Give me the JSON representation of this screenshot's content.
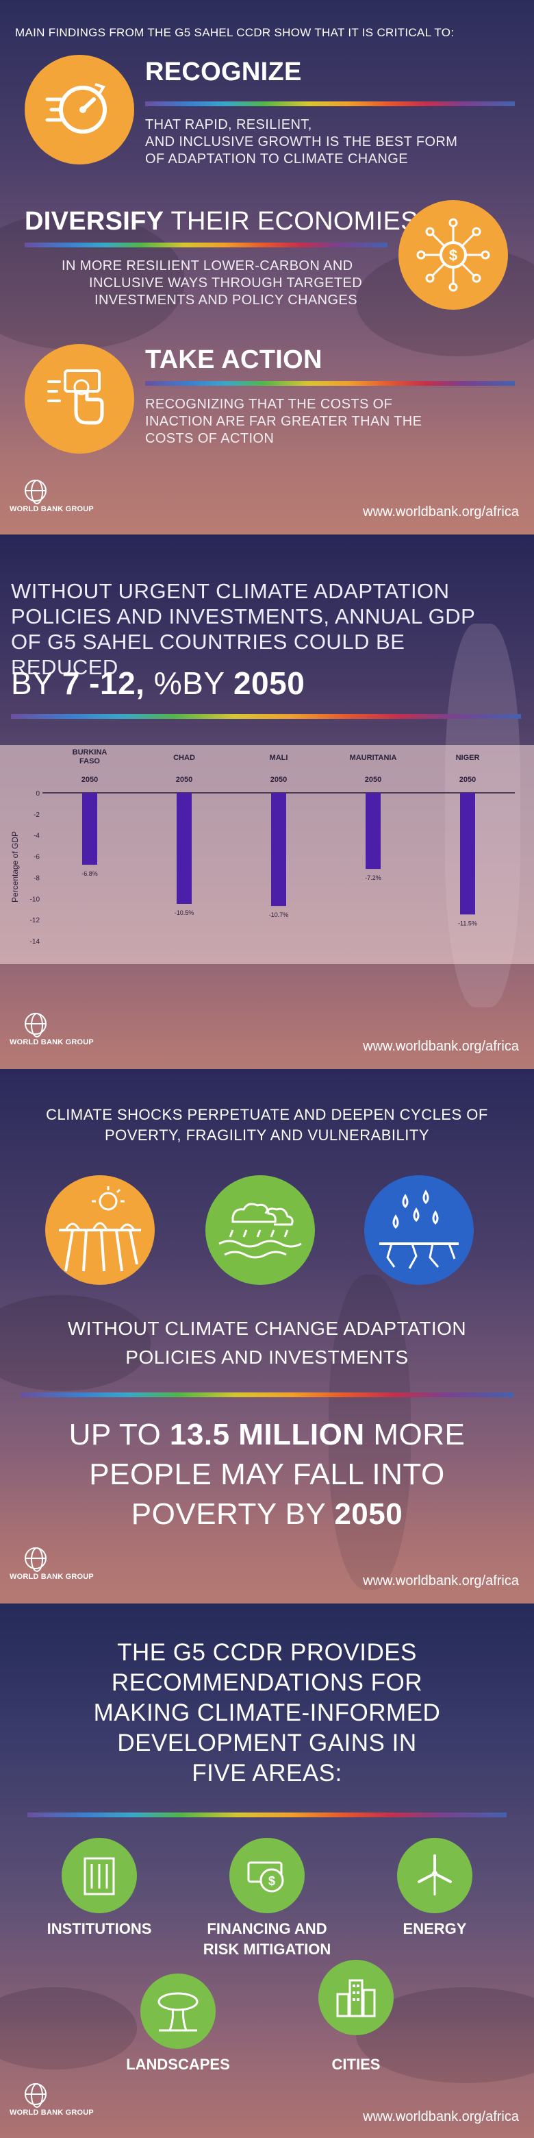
{
  "panel1": {
    "intro": "MAIN FINDINGS FROM THE G5 SAHEL CCDR SHOW THAT IT IS CRITICAL TO:",
    "recognize": {
      "title": "RECOGNIZE",
      "line1": "THAT RAPID, RESILIENT,",
      "line2": "AND INCLUSIVE GROWTH IS THE BEST FORM",
      "line3": "OF ADAPTATION TO CLIMATE CHANGE",
      "icon": "speedometer-icon"
    },
    "diversify": {
      "title_bold": "DIVERSIFY",
      "title_rest": " THEIR ECONOMIES",
      "line1": "IN MORE RESILIENT LOWER-CARBON AND",
      "line2": "INCLUSIVE WAYS THROUGH TARGETED",
      "line3": "INVESTMENTS AND POLICY CHANGES",
      "icon": "dollar-network-icon"
    },
    "take_action": {
      "title": "TAKE ACTION",
      "line1": "RECOGNIZING THAT THE COSTS OF",
      "line2": "INACTION ARE FAR GREATER THAN THE",
      "line3": "COSTS OF ACTION",
      "icon": "hand-tap-icon"
    }
  },
  "footer": {
    "logo_text": "WORLD BANK GROUP",
    "url": "www.worldbank.org/africa"
  },
  "panel2": {
    "head1": "WITHOUT URGENT CLIMATE ADAPTATION",
    "head2": "POLICIES AND INVESTMENTS, ANNUAL GDP",
    "head3": "OF G5 SAHEL COUNTRIES COULD BE REDUCED",
    "big_by": "BY ",
    "big_range": "7 -12, ",
    "big_pct": "%BY ",
    "big_year": "2050"
  },
  "chart_data": {
    "type": "bar",
    "categories": [
      "BURKINA FASO",
      "CHAD",
      "MALI",
      "MAURITANIA",
      "NIGER"
    ],
    "year_label": "2050",
    "values": [
      -6.8,
      -10.5,
      -10.7,
      -7.2,
      -11.5
    ],
    "value_labels": [
      "-6.8%",
      "-10.5%",
      "-10.7%",
      "-7.2%",
      "-11.5%"
    ],
    "ylabel": "Percentage of GDP",
    "ylim": [
      -14,
      0
    ],
    "yticks": [
      0,
      -2,
      -4,
      -6,
      -8,
      -10,
      -12,
      -14
    ],
    "bar_color": "#4b1fa8"
  },
  "panel3": {
    "head1": "CLIMATE SHOCKS PERPETUATE AND DEEPEN CYCLES OF",
    "head2": "POVERTY, FRAGILITY AND VULNERABILITY",
    "icons": [
      {
        "name": "drought-icon",
        "color": "#f4a53a"
      },
      {
        "name": "flood-icon",
        "color": "#79bd45"
      },
      {
        "name": "rain-cracked-soil-icon",
        "color": "#2a64c8"
      }
    ],
    "mid1": "WITHOUT CLIMATE CHANGE ADAPTATION",
    "mid2": "POLICIES AND INVESTMENTS",
    "big_pre": "UP TO ",
    "big_num": "13.5 MILLION",
    "big_post": " MORE",
    "big_line2": "PEOPLE MAY FALL INTO",
    "big_line3_pre": "POVERTY BY ",
    "big_year": "2050"
  },
  "panel4": {
    "head1": "THE G5 CCDR PROVIDES",
    "head2": "RECOMMENDATIONS FOR",
    "head3": "MAKING CLIMATE-INFORMED",
    "head4": "DEVELOPMENT GAINS IN",
    "head5": "FIVE AREAS:",
    "areas": [
      {
        "label": "INSTITUTIONS",
        "icon": "building-icon"
      },
      {
        "label": "FINANCING AND",
        "label2": "RISK MITIGATION",
        "icon": "money-icon"
      },
      {
        "label": "ENERGY",
        "icon": "wind-turbine-icon"
      },
      {
        "label": "LANDSCAPES",
        "icon": "baobab-tree-icon"
      },
      {
        "label": "CITIES",
        "icon": "city-icon"
      }
    ],
    "green": "#7cbe4a"
  }
}
